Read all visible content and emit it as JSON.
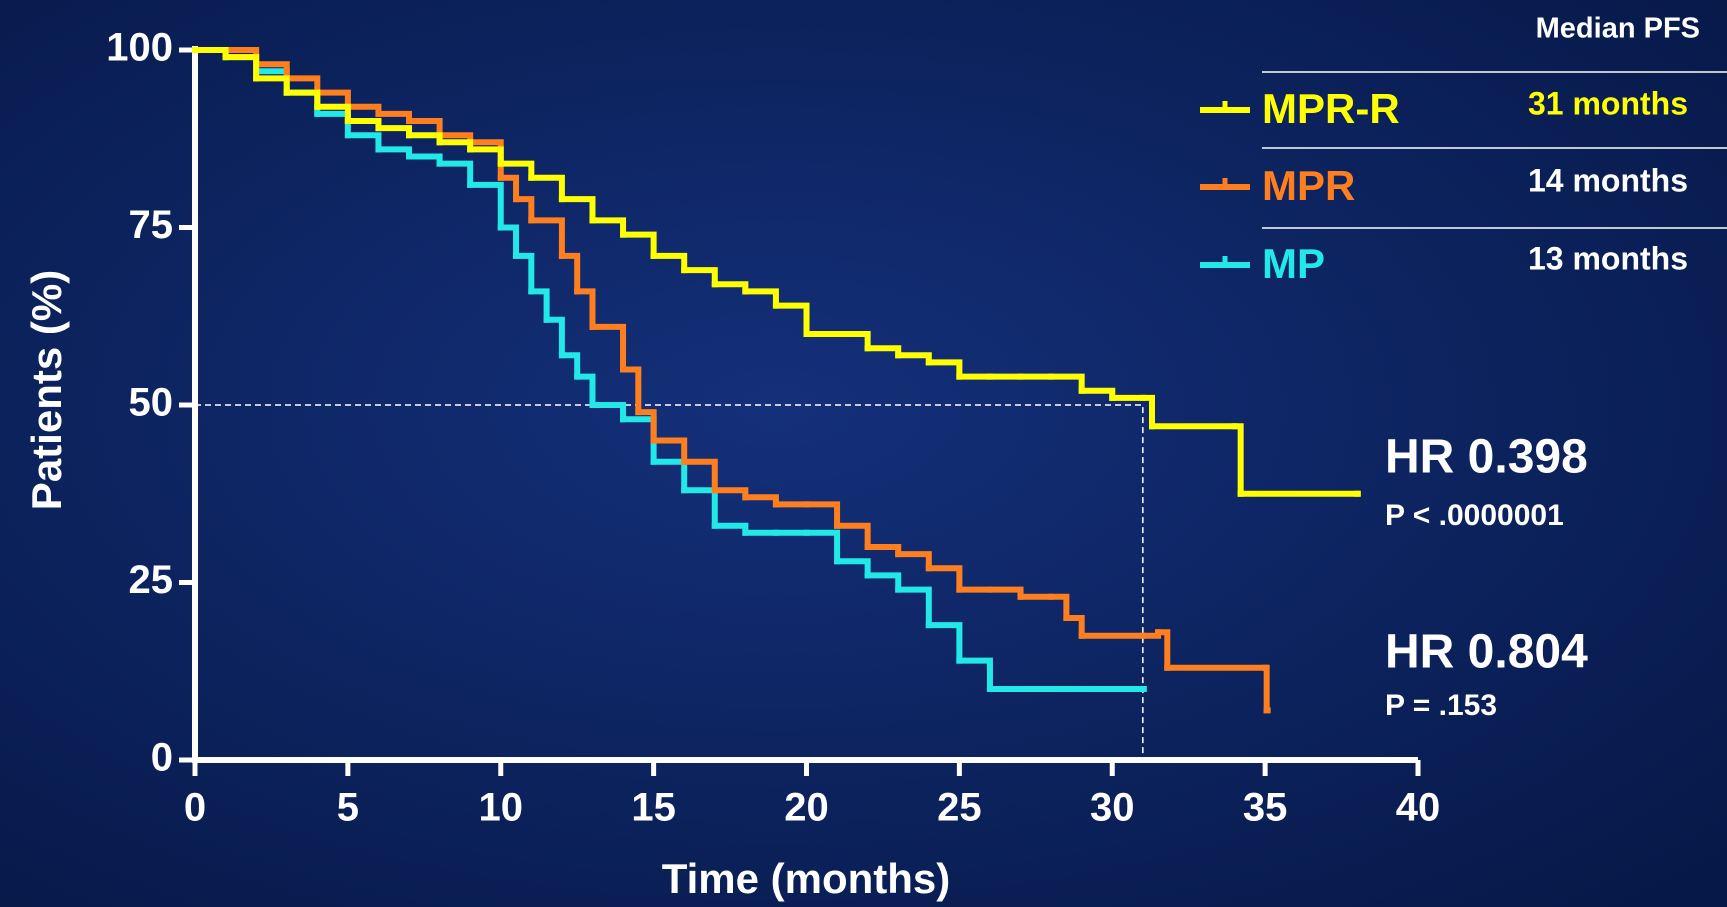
{
  "chart_data": {
    "type": "line",
    "step": true,
    "x_label": "Time (months)",
    "y_label": "Patients (%)",
    "xlim": [
      0,
      40
    ],
    "xticks": [
      0,
      5,
      10,
      15,
      20,
      25,
      30,
      35,
      40
    ],
    "ylim": [
      0,
      100
    ],
    "yticks": [
      0,
      25,
      50,
      75,
      100
    ],
    "series": [
      {
        "name": "MPR-R",
        "color": "#ffff00",
        "x": [
          0,
          1,
          2,
          3,
          4,
          5,
          6,
          7,
          8,
          9,
          10,
          11,
          12,
          13,
          14,
          15,
          16,
          17,
          18,
          19,
          20,
          21,
          22,
          23,
          24,
          25,
          26,
          27,
          28,
          29,
          30,
          31,
          31.3,
          34,
          34.2,
          38
        ],
        "values": [
          100,
          99,
          96,
          94,
          92,
          90,
          89,
          88,
          87,
          86,
          84,
          82,
          79,
          76,
          74,
          71,
          69,
          67,
          66,
          64,
          60,
          60,
          58,
          57,
          56,
          54,
          54,
          54,
          54,
          52,
          51,
          51,
          47,
          47,
          37.5,
          37.5
        ]
      },
      {
        "name": "MPR",
        "color": "#ff7f1e",
        "x": [
          0,
          1,
          2,
          3,
          4,
          5,
          6,
          7,
          8,
          9,
          10,
          10.5,
          11,
          12,
          12.5,
          13,
          14,
          14.5,
          15,
          16,
          17,
          18,
          19,
          20,
          21,
          22,
          23,
          24,
          25,
          26,
          27,
          28,
          28.5,
          29,
          31,
          31.5,
          31.8,
          35,
          35.05
        ],
        "values": [
          100,
          100,
          98,
          96,
          94,
          92,
          91,
          90,
          88,
          87,
          82,
          79,
          76,
          71,
          66,
          61,
          55,
          49,
          45,
          42,
          38,
          37,
          36,
          36,
          33,
          30,
          29,
          27,
          24,
          24,
          23,
          23,
          20,
          17.5,
          17.5,
          18,
          13,
          13,
          7
        ]
      },
      {
        "name": "MP",
        "color": "#22e8e8",
        "x": [
          0,
          1,
          2,
          3,
          4,
          5,
          6,
          7,
          8,
          9,
          10,
          10.5,
          11,
          11.5,
          12,
          12.5,
          13,
          14,
          15,
          16,
          17,
          18,
          19,
          20,
          21,
          22,
          23,
          24,
          25,
          26,
          27,
          28,
          29,
          30,
          31
        ],
        "values": [
          100,
          99,
          97,
          94,
          91,
          88,
          86,
          85,
          84,
          81,
          75,
          71,
          66,
          62,
          57,
          54,
          50,
          48,
          42,
          38,
          33,
          32,
          32,
          32,
          28,
          26,
          24,
          19,
          14,
          10,
          10,
          10,
          10,
          10,
          10
        ]
      }
    ],
    "median_line": {
      "x": 31,
      "y": 50
    },
    "legend_header": "Median PFS",
    "medians": [
      "31 months",
      "14 months",
      "13 months"
    ],
    "annotations": [
      {
        "hr": "HR 0.398",
        "p": "P < .0000001"
      },
      {
        "hr": "HR 0.804",
        "p": "P = .153"
      }
    ]
  }
}
